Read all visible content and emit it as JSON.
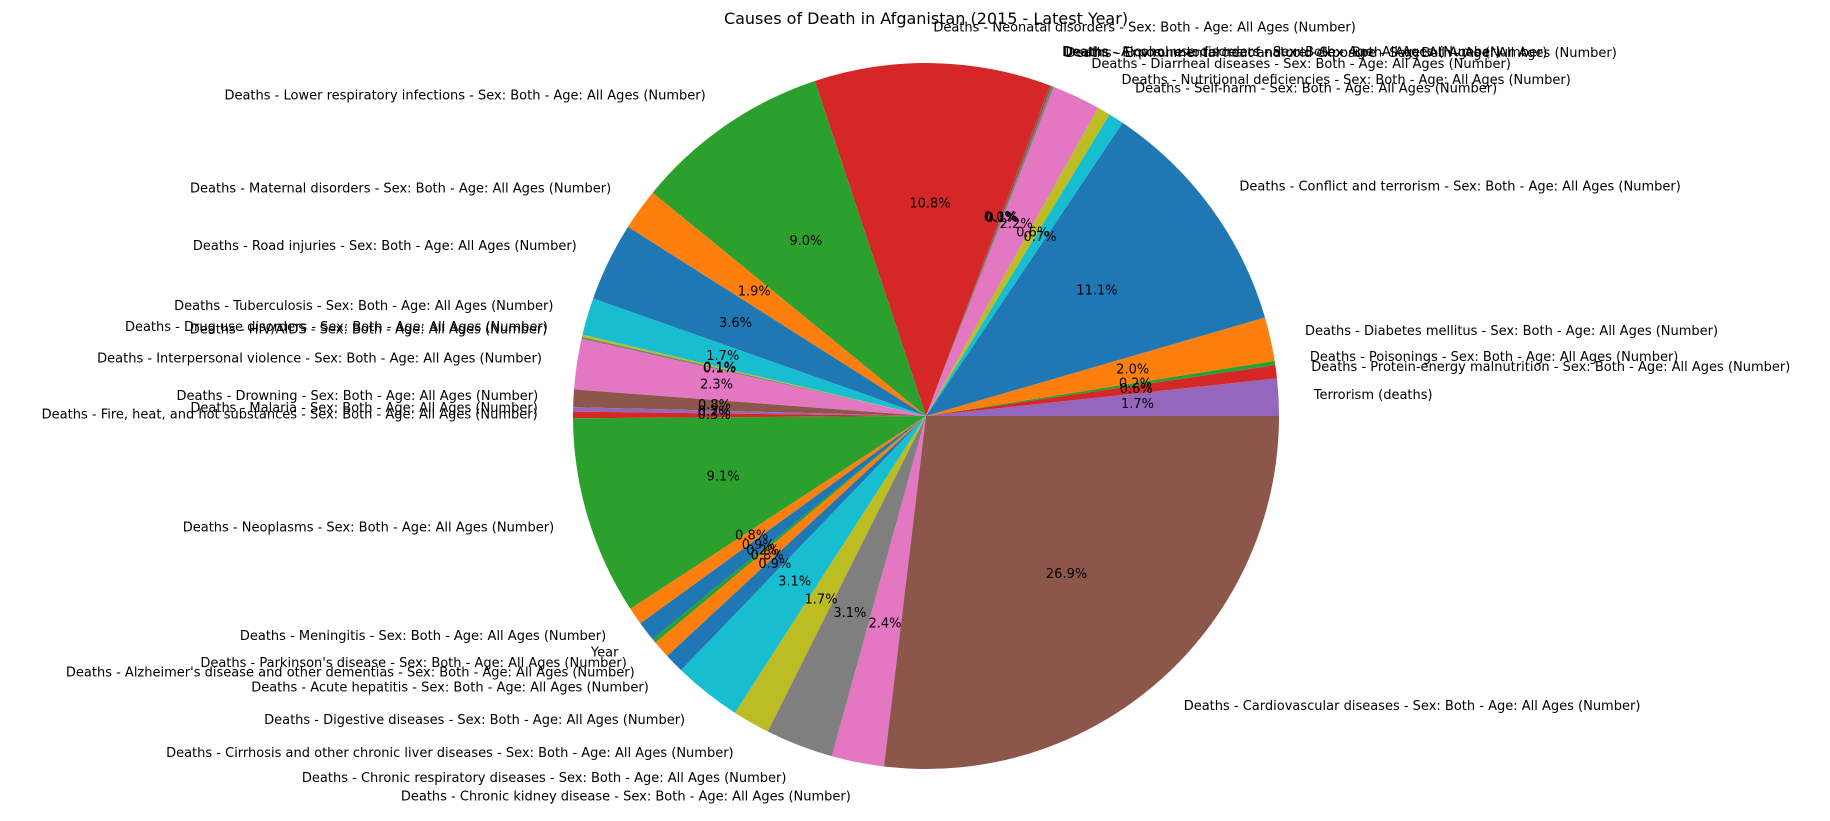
{
  "chart_data": {
    "type": "pie",
    "title": "Causes of Death in Afganistan (2015 - Latest Year)",
    "start_angle_deg": 0,
    "direction": "counterclockwise",
    "slices": [
      {
        "label": "Terrorism (deaths)",
        "value": 1.7,
        "pct_label": "1.7%",
        "color": "#9467bd"
      },
      {
        "label": "Deaths - Protein-energy malnutrition - Sex: Both - Age: All Ages (Number)",
        "value": 0.6,
        "pct_label": "0.6%",
        "color": "#d62728"
      },
      {
        "label": "Deaths - Poisonings - Sex: Both - Age: All Ages (Number)",
        "value": 0.2,
        "pct_label": "0.2%",
        "color": "#2ca02c"
      },
      {
        "label": "Deaths - Diabetes mellitus - Sex: Both - Age: All Ages (Number)",
        "value": 2.0,
        "pct_label": "2.0%",
        "color": "#ff7f0e"
      },
      {
        "label": "Deaths - Conflict and terrorism - Sex: Both - Age: All Ages (Number)",
        "value": 11.1,
        "pct_label": "11.1%",
        "color": "#1f77b4"
      },
      {
        "label": "Deaths - Self-harm - Sex: Both - Age: All Ages (Number)",
        "value": 0.7,
        "pct_label": "0.7%",
        "color": "#17becf"
      },
      {
        "label": "Deaths - Nutritional deficiencies - Sex: Both - Age: All Ages (Number)",
        "value": 0.6,
        "pct_label": "0.6%",
        "color": "#bcbd22"
      },
      {
        "label": "Deaths - Diarrheal diseases - Sex: Both - Age: All Ages (Number)",
        "value": 2.2,
        "pct_label": "2.2%",
        "color": "#e377c2"
      },
      {
        "label": "Deaths - Environmental heat and cold exposure - Sex: Both - Age: All Ages (Number)",
        "value": 0.1,
        "pct_label": "0.1%",
        "color": "#7f7f7f"
      },
      {
        "label": "Deaths - Exposure to forces of nature - Sex: Both - Age: All Ages (Number)",
        "value": 0.1,
        "pct_label": "0.1%",
        "color": "#8c564b"
      },
      {
        "label": "Deaths - Alcohol use disorders - Sex: Both - Age: All Ages (Number)",
        "value": 0.0,
        "pct_label": "0.0%",
        "color": "#9467bd"
      },
      {
        "label": "Deaths - Neonatal disorders - Sex: Both - Age: All Ages (Number)",
        "value": 10.8,
        "pct_label": "10.8%",
        "color": "#d62728"
      },
      {
        "label": "Deaths - Lower respiratory infections - Sex: Both - Age: All Ages (Number)",
        "value": 9.0,
        "pct_label": "9.0%",
        "color": "#2ca02c"
      },
      {
        "label": "Deaths - Maternal disorders - Sex: Both - Age: All Ages (Number)",
        "value": 1.9,
        "pct_label": "1.9%",
        "color": "#ff7f0e"
      },
      {
        "label": "Deaths - Road injuries - Sex: Both - Age: All Ages (Number)",
        "value": 3.6,
        "pct_label": "3.6%",
        "color": "#1f77b4"
      },
      {
        "label": "Deaths - Tuberculosis - Sex: Both - Age: All Ages (Number)",
        "value": 1.7,
        "pct_label": "1.7%",
        "color": "#17becf"
      },
      {
        "label": "Deaths - Drug use disorders - Sex: Both - Age: All Ages (Number)",
        "value": 0.1,
        "pct_label": "0.1%",
        "color": "#bcbd22"
      },
      {
        "label": "Deaths - HIV/AIDS - Sex: Both - Age: All Ages (Number)",
        "value": 0.1,
        "pct_label": "0.1%",
        "color": "#7f7f7f"
      },
      {
        "label": "Deaths - Interpersonal violence - Sex: Both - Age: All Ages (Number)",
        "value": 2.3,
        "pct_label": "2.3%",
        "color": "#e377c2"
      },
      {
        "label": "Deaths - Drowning - Sex: Both - Age: All Ages (Number)",
        "value": 0.8,
        "pct_label": "0.8%",
        "color": "#8c564b"
      },
      {
        "label": "Deaths - Malaria - Sex: Both - Age: All Ages (Number)",
        "value": 0.2,
        "pct_label": "0.2%",
        "color": "#9467bd"
      },
      {
        "label": "Deaths - Fire, heat, and hot substances - Sex: Both - Age: All Ages (Number)",
        "value": 0.3,
        "pct_label": "0.3%",
        "color": "#d62728"
      },
      {
        "label": "Deaths - Neoplasms - Sex: Both - Age: All Ages (Number)",
        "value": 9.1,
        "pct_label": "9.1%",
        "color": "#2ca02c"
      },
      {
        "label": "Deaths - Meningitis - Sex: Both - Age: All Ages (Number)",
        "value": 0.8,
        "pct_label": "0.8%",
        "color": "#ff7f0e"
      },
      {
        "label": "Year",
        "value": 0.9,
        "pct_label": "0.9%",
        "color": "#1f77b4"
      },
      {
        "label": "Deaths - Parkinson's disease - Sex: Both - Age: All Ages (Number)",
        "value": 0.2,
        "pct_label": "0.2%",
        "color": "#2ca02c"
      },
      {
        "label": "Deaths - Alzheimer's disease and other dementias - Sex: Both - Age: All Ages (Number)",
        "value": 0.8,
        "pct_label": "0.8%",
        "color": "#ff7f0e"
      },
      {
        "label": "Deaths - Acute hepatitis - Sex: Both - Age: All Ages (Number)",
        "value": 0.9,
        "pct_label": "0.9%",
        "color": "#1f77b4"
      },
      {
        "label": "Deaths - Digestive diseases - Sex: Both - Age: All Ages (Number)",
        "value": 3.1,
        "pct_label": "3.1%",
        "color": "#17becf"
      },
      {
        "label": "Deaths - Cirrhosis and other chronic liver diseases - Sex: Both - Age: All Ages (Number)",
        "value": 1.7,
        "pct_label": "1.7%",
        "color": "#bcbd22"
      },
      {
        "label": "Deaths - Chronic respiratory diseases - Sex: Both - Age: All Ages (Number)",
        "value": 3.1,
        "pct_label": "3.1%",
        "color": "#7f7f7f"
      },
      {
        "label": "Deaths - Chronic kidney disease - Sex: Both - Age: All Ages (Number)",
        "value": 2.4,
        "pct_label": "2.4%",
        "color": "#e377c2"
      },
      {
        "label": "Deaths - Cardiovascular diseases - Sex: Both - Age: All Ages (Number)",
        "value": 26.9,
        "pct_label": "26.9%",
        "color": "#8c564b"
      }
    ]
  }
}
